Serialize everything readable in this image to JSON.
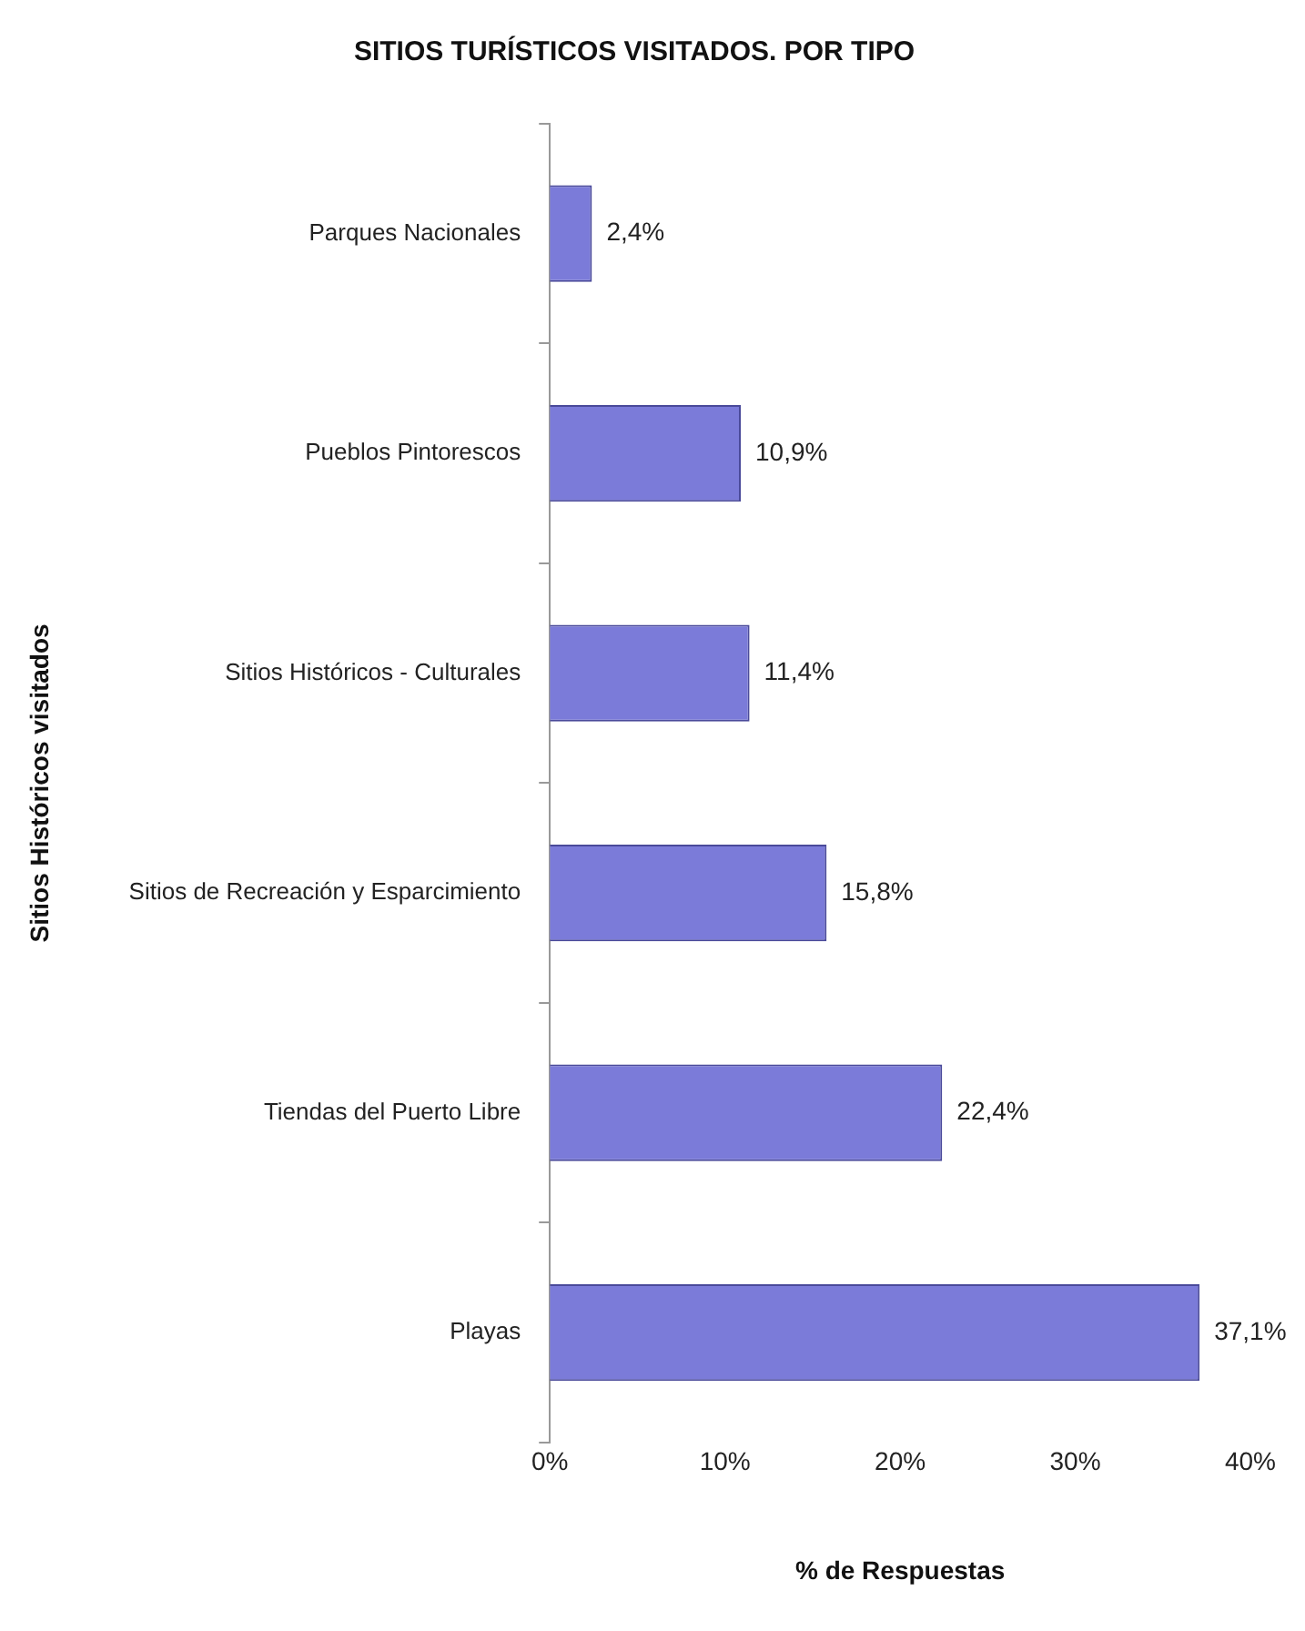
{
  "chart_data": {
    "type": "bar",
    "orientation": "horizontal",
    "title": "SITIOS TURÍSTICOS VISITADOS. POR TIPO",
    "xlabel": "% de Respuestas",
    "ylabel": "Sitios Históricos visitados",
    "categories": [
      "Parques Nacionales",
      "Pueblos Pintorescos",
      "Sitios Históricos - Culturales",
      "Sitios de Recreación y Esparcimiento",
      "Tiendas del Puerto Libre",
      "Playas"
    ],
    "values": [
      2.4,
      10.9,
      11.4,
      15.8,
      22.4,
      37.1
    ],
    "value_labels": [
      "2,4%",
      "10,9%",
      "11,4%",
      "15,8%",
      "22,4%",
      "37,1%"
    ],
    "color": "#7b7bd9",
    "xlim": [
      0,
      40
    ],
    "xticks": [
      {
        "value": 0,
        "label": "0%"
      },
      {
        "value": 10,
        "label": "10%"
      },
      {
        "value": 20,
        "label": "20%"
      },
      {
        "value": 30,
        "label": "30%"
      },
      {
        "value": 40,
        "label": "40%"
      }
    ],
    "grid": false,
    "legend": false
  }
}
